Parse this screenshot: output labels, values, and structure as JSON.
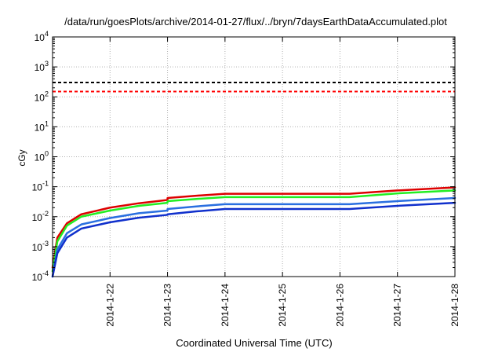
{
  "chart_data": {
    "type": "line",
    "title": "/data/run/goesPlots/archive/2014-01-27/flux/../bryn/7daysEarthDataAccumulated.plot",
    "xlabel": "Coordinated Universal Time (UTC)",
    "ylabel": "cGy",
    "x_range": [
      "2014-01-21",
      "2014-01-28"
    ],
    "x_ticks": [
      "2014-1-22",
      "2014-1-23",
      "2014-1-24",
      "2014-1-25",
      "2014-1-26",
      "2014-1-27",
      "2014-1-28"
    ],
    "y_scale": "log",
    "ylim": [
      0.0001,
      10000
    ],
    "y_ticks": [
      {
        "value": 0.0001,
        "base": "10",
        "exp": "-4"
      },
      {
        "value": 0.001,
        "base": "10",
        "exp": "-3"
      },
      {
        "value": 0.01,
        "base": "10",
        "exp": "-2"
      },
      {
        "value": 0.1,
        "base": "10",
        "exp": "-1"
      },
      {
        "value": 1,
        "base": "10",
        "exp": "0"
      },
      {
        "value": 10,
        "base": "10",
        "exp": "1"
      },
      {
        "value": 100,
        "base": "10",
        "exp": "2"
      },
      {
        "value": 1000,
        "base": "10",
        "exp": "3"
      },
      {
        "value": 10000,
        "base": "10",
        "exp": "4"
      }
    ],
    "grid": true,
    "thresholds": [
      {
        "value": 300,
        "color": "#000000",
        "style": "dashed"
      },
      {
        "value": 150,
        "color": "#ff0000",
        "style": "dashed"
      }
    ],
    "series": [
      {
        "color": "#dd0000",
        "points": [
          [
            "2014-01-21 00:00",
            0.0002
          ],
          [
            "2014-01-21 02:00",
            0.002
          ],
          [
            "2014-01-21 06:00",
            0.006
          ],
          [
            "2014-01-21 12:00",
            0.012
          ],
          [
            "2014-01-22 00:00",
            0.02
          ],
          [
            "2014-01-22 12:00",
            0.028
          ],
          [
            "2014-01-23 00:00",
            0.036
          ],
          [
            "2014-01-23 00:01",
            0.042
          ],
          [
            "2014-01-23 12:00",
            0.05
          ],
          [
            "2014-01-24 00:00",
            0.058
          ],
          [
            "2014-01-26 04:00",
            0.058
          ],
          [
            "2014-01-27 00:00",
            0.075
          ],
          [
            "2014-01-28 00:00",
            0.095
          ]
        ]
      },
      {
        "color": "#22ee22",
        "points": [
          [
            "2014-01-21 00:00",
            0.00015
          ],
          [
            "2014-01-21 02:00",
            0.0015
          ],
          [
            "2014-01-21 06:00",
            0.005
          ],
          [
            "2014-01-21 12:00",
            0.01
          ],
          [
            "2014-01-22 00:00",
            0.016
          ],
          [
            "2014-01-22 12:00",
            0.023
          ],
          [
            "2014-01-23 00:00",
            0.029
          ],
          [
            "2014-01-23 00:01",
            0.033
          ],
          [
            "2014-01-23 12:00",
            0.039
          ],
          [
            "2014-01-24 00:00",
            0.045
          ],
          [
            "2014-01-26 04:00",
            0.045
          ],
          [
            "2014-01-27 00:00",
            0.06
          ],
          [
            "2014-01-28 00:00",
            0.075
          ]
        ]
      },
      {
        "color": "#2a6fe0",
        "points": [
          [
            "2014-01-21 00:00",
            0.0001
          ],
          [
            "2014-01-21 02:00",
            0.0008
          ],
          [
            "2014-01-21 06:00",
            0.0028
          ],
          [
            "2014-01-21 12:00",
            0.0055
          ],
          [
            "2014-01-22 00:00",
            0.009
          ],
          [
            "2014-01-22 12:00",
            0.013
          ],
          [
            "2014-01-23 00:00",
            0.016
          ],
          [
            "2014-01-23 00:01",
            0.018
          ],
          [
            "2014-01-23 12:00",
            0.022
          ],
          [
            "2014-01-24 00:00",
            0.026
          ],
          [
            "2014-01-26 04:00",
            0.026
          ],
          [
            "2014-01-27 00:00",
            0.033
          ],
          [
            "2014-01-28 00:00",
            0.042
          ]
        ]
      },
      {
        "color": "#1030cc",
        "points": [
          [
            "2014-01-21 00:00",
            0.0001
          ],
          [
            "2014-01-21 02:00",
            0.0006
          ],
          [
            "2014-01-21 06:00",
            0.002
          ],
          [
            "2014-01-21 12:00",
            0.004
          ],
          [
            "2014-01-22 00:00",
            0.0065
          ],
          [
            "2014-01-22 12:00",
            0.0092
          ],
          [
            "2014-01-23 00:00",
            0.0115
          ],
          [
            "2014-01-23 00:01",
            0.012
          ],
          [
            "2014-01-23 12:00",
            0.015
          ],
          [
            "2014-01-24 00:00",
            0.018
          ],
          [
            "2014-01-26 04:00",
            0.018
          ],
          [
            "2014-01-27 00:00",
            0.023
          ],
          [
            "2014-01-28 00:00",
            0.029
          ]
        ]
      }
    ]
  }
}
